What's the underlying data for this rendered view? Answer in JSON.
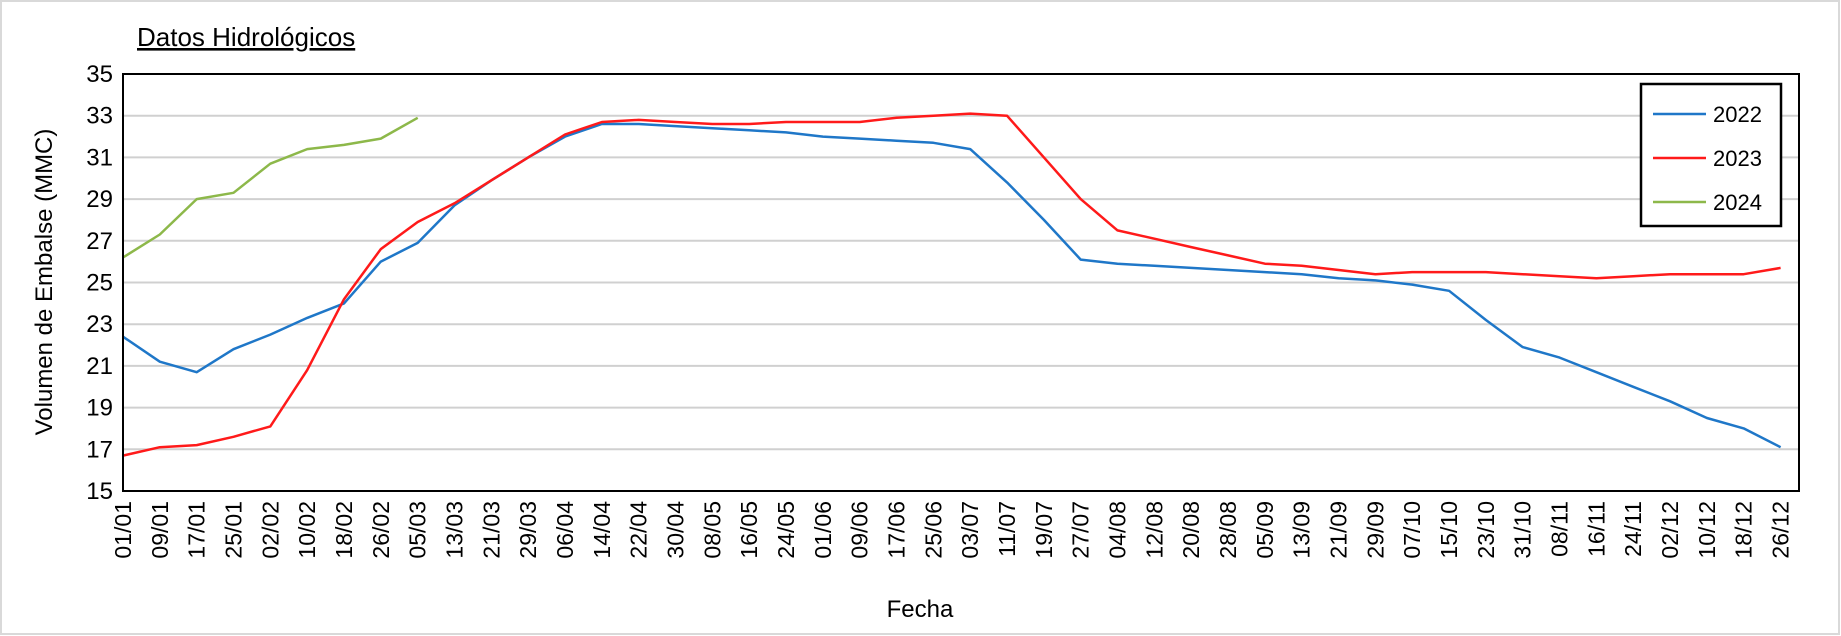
{
  "chart_data": {
    "type": "line",
    "title": "Datos Hidrológicos",
    "x_label": "Fecha",
    "y_label": "Volumen de Embalse (MMC)",
    "categories": [
      "01/01",
      "09/01",
      "17/01",
      "25/01",
      "02/02",
      "10/02",
      "18/02",
      "26/02",
      "05/03",
      "13/03",
      "21/03",
      "29/03",
      "06/04",
      "14/04",
      "22/04",
      "30/04",
      "08/05",
      "16/05",
      "24/05",
      "01/06",
      "09/06",
      "17/06",
      "25/06",
      "03/07",
      "11/07",
      "19/07",
      "27/07",
      "04/08",
      "12/08",
      "20/08",
      "28/08",
      "05/09",
      "13/09",
      "21/09",
      "29/09",
      "07/10",
      "15/10",
      "23/10",
      "31/10",
      "08/11",
      "16/11",
      "24/11",
      "02/12",
      "10/12",
      "18/12",
      "26/12"
    ],
    "series": [
      {
        "name": "2022",
        "color": "#1f77c8",
        "values": [
          22.4,
          21.2,
          20.7,
          21.8,
          22.5,
          23.3,
          24.0,
          26.0,
          26.9,
          28.7,
          29.9,
          31.0,
          32.0,
          32.6,
          32.6,
          32.5,
          32.4,
          32.3,
          32.2,
          32.0,
          31.9,
          31.8,
          31.7,
          31.4,
          29.8,
          28.0,
          26.1,
          25.9,
          25.8,
          25.7,
          25.6,
          25.5,
          25.4,
          25.2,
          25.1,
          24.9,
          24.6,
          23.2,
          21.9,
          21.4,
          20.7,
          20.0,
          19.3,
          18.5,
          18.0,
          17.1
        ]
      },
      {
        "name": "2023",
        "color": "#ff1a1a",
        "values": [
          16.7,
          17.1,
          17.2,
          17.6,
          18.1,
          20.8,
          24.2,
          26.6,
          27.9,
          28.8,
          29.9,
          31.0,
          32.1,
          32.7,
          32.8,
          32.7,
          32.6,
          32.6,
          32.7,
          32.7,
          32.7,
          32.9,
          33.0,
          33.1,
          33.0,
          31.0,
          29.0,
          27.5,
          27.1,
          26.7,
          26.3,
          25.9,
          25.8,
          25.6,
          25.4,
          25.5,
          25.5,
          25.5,
          25.4,
          25.3,
          25.2,
          25.3,
          25.4,
          25.4,
          25.4,
          25.7
        ]
      },
      {
        "name": "2024",
        "color": "#8db84a",
        "values": [
          26.2,
          27.3,
          29.0,
          29.3,
          30.7,
          31.4,
          31.6,
          31.9,
          32.9,
          null,
          null,
          null,
          null,
          null,
          null,
          null,
          null,
          null,
          null,
          null,
          null,
          null,
          null,
          null,
          null,
          null,
          null,
          null,
          null,
          null,
          null,
          null,
          null,
          null,
          null,
          null,
          null,
          null,
          null,
          null,
          null,
          null,
          null,
          null,
          null,
          null
        ]
      }
    ],
    "ylim": [
      15,
      35
    ],
    "yticks": [
      15,
      17,
      19,
      21,
      23,
      25,
      27,
      29,
      31,
      33,
      35
    ],
    "grid": true,
    "legend": "top-right"
  }
}
